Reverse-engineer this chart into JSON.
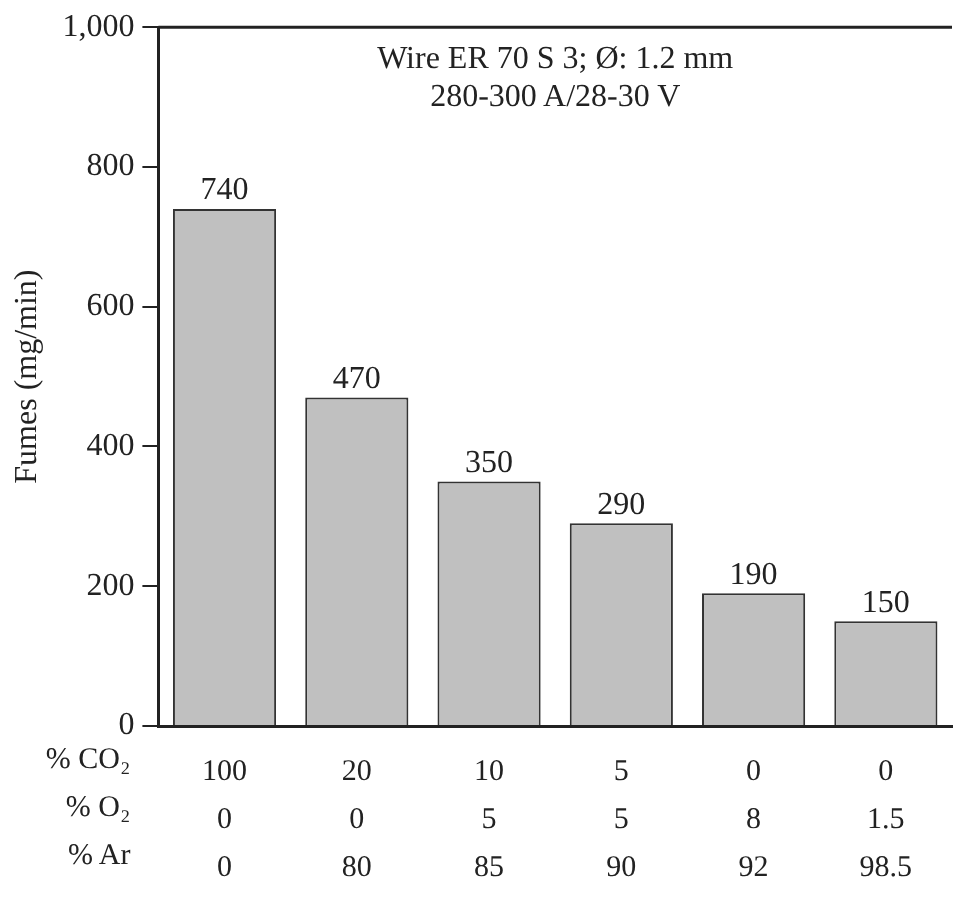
{
  "chart_data": {
    "type": "bar",
    "title": "Wire ER 70 S 3; Ø: 1.2 mm",
    "subtitle": "280-300 A/28-30 V",
    "ylabel": "Fumes (mg/min)",
    "categories": [
      "100\n0\n0",
      "20\n0\n80",
      "10\n5\n85",
      "5\n5\n90",
      "0\n8\n92",
      "0\n1.5\n98.5"
    ],
    "annotations": [
      "% CO₂",
      "% O₂",
      "% Ar"
    ],
    "values": [
      740,
      470,
      350,
      290,
      190,
      150
    ],
    "color": "#c0c0c0",
    "ylim": [
      0,
      1000
    ],
    "yticks": [
      0,
      200,
      400,
      600,
      800,
      {
        "value": 1000,
        "label": "1,000"
      }
    ],
    "data_labels": true
  }
}
